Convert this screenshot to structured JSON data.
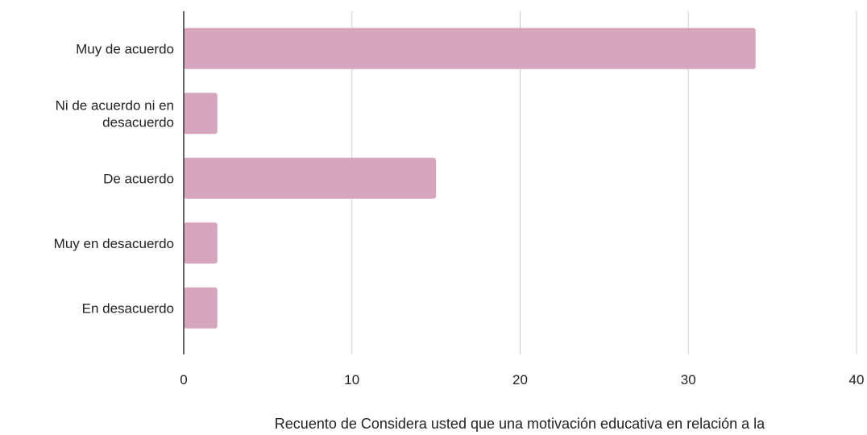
{
  "chart_data": {
    "type": "bar",
    "orientation": "horizontal",
    "categories": [
      "Muy de acuerdo",
      "Ni de acuerdo  ni en desacuerdo",
      "De acuerdo",
      "Muy en desacuerdo",
      "En desacuerdo"
    ],
    "category_lines": [
      [
        "Muy de acuerdo"
      ],
      [
        "Ni de acuerdo  ni en",
        "desacuerdo"
      ],
      [
        "De acuerdo"
      ],
      [
        "Muy en desacuerdo"
      ],
      [
        "En desacuerdo"
      ]
    ],
    "values": [
      34,
      2,
      15,
      2,
      2
    ],
    "xlim": [
      0,
      40
    ],
    "xticks": [
      0,
      10,
      20,
      30,
      40
    ],
    "xlabel": "Recuento de Considera usted que una motivación educativa en relación a la",
    "ylabel": "",
    "title": "",
    "grid": true,
    "bar_color": "#d5a6bd",
    "grid_color": "#cccccc",
    "axis_color": "#333333"
  }
}
